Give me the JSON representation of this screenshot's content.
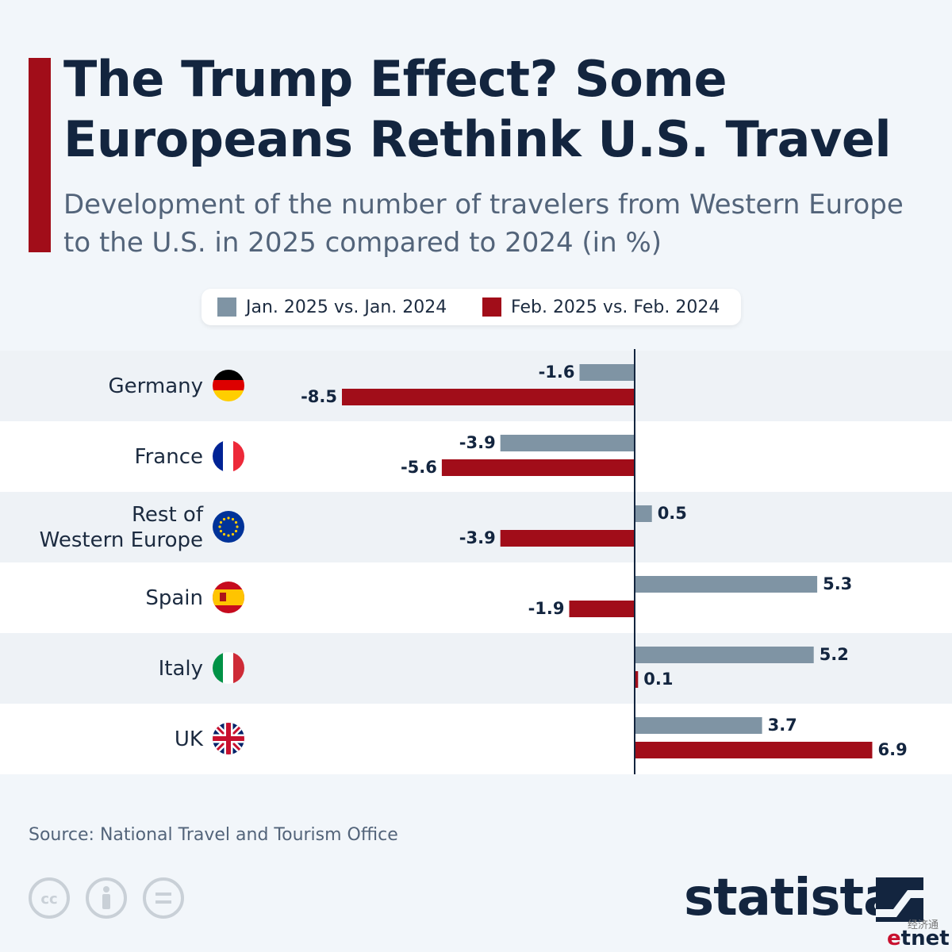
{
  "header": {
    "title": "The Trump Effect? Some Europeans Rethink U.S. Travel",
    "subtitle": "Development of the number of travelers from Western Europe to the U.S. in 2025 compared to 2024 (in %)"
  },
  "legend": [
    {
      "label": "Jan. 2025 vs. Jan. 2024",
      "color": "#7f94a4"
    },
    {
      "label": "Feb. 2025 vs. Feb. 2024",
      "color": "#a10d19"
    }
  ],
  "chart_data": {
    "type": "bar",
    "orientation": "horizontal",
    "title": "The Trump Effect? Some Europeans Rethink U.S. Travel",
    "subtitle": "Development of the number of travelers from Western Europe to the U.S. in 2025 compared to 2024 (in %)",
    "categories": [
      "Germany",
      "France",
      "Rest of Western Europe",
      "Spain",
      "Italy",
      "UK"
    ],
    "category_flags": [
      "germany-flag",
      "france-flag",
      "eu-flag",
      "spain-flag",
      "italy-flag",
      "uk-flag"
    ],
    "series": [
      {
        "name": "Jan. 2025 vs. Jan. 2024",
        "color": "#7f94a4",
        "values": [
          -1.6,
          -3.9,
          0.5,
          5.3,
          5.2,
          3.7
        ]
      },
      {
        "name": "Feb. 2025 vs. Feb. 2024",
        "color": "#a10d19",
        "values": [
          -8.5,
          -5.6,
          -3.9,
          -1.9,
          0.1,
          6.9
        ]
      }
    ],
    "xlim": [
      -8.5,
      6.9
    ],
    "grid": false,
    "legend_position": "top-center"
  },
  "footer": {
    "source": "Source: National Travel and Tourism Office",
    "brand": "statista",
    "watermark_cn": "经济通",
    "watermark_brand_e": "e",
    "watermark_brand_rest": "tnet"
  }
}
